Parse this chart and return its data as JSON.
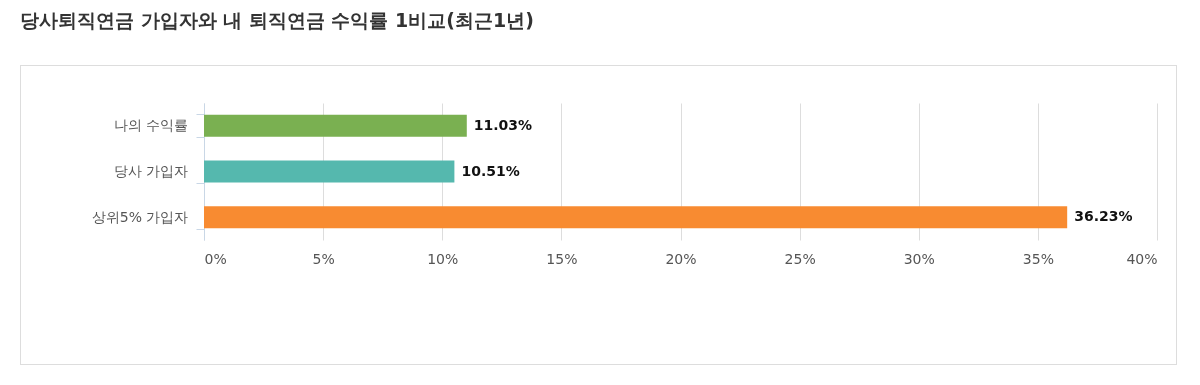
{
  "chart_data": {
    "type": "bar",
    "orientation": "horizontal",
    "title": "당사퇴직연금 가입자와 내 퇴직연금 수익률 1비교(최근1년)",
    "categories": [
      "나의 수익률",
      "당사 가입자",
      "상위5% 가입자"
    ],
    "values": [
      11.03,
      10.51,
      36.23
    ],
    "colors": [
      "#7ab051",
      "#55b8ae",
      "#f88b31"
    ],
    "value_labels": [
      "11.03%",
      "10.51%",
      "36.23%"
    ],
    "xlim": [
      0,
      40
    ],
    "xticks": [
      {
        "value": 0,
        "label": "0%"
      },
      {
        "value": 5,
        "label": "5%"
      },
      {
        "value": 10,
        "label": "10%"
      },
      {
        "value": 15,
        "label": "15%"
      },
      {
        "value": 20,
        "label": "20%"
      },
      {
        "value": 25,
        "label": "25%"
      },
      {
        "value": 30,
        "label": "30%"
      },
      {
        "value": 35,
        "label": "35%"
      },
      {
        "value": 40,
        "label": "40%"
      }
    ],
    "grid": "x"
  }
}
